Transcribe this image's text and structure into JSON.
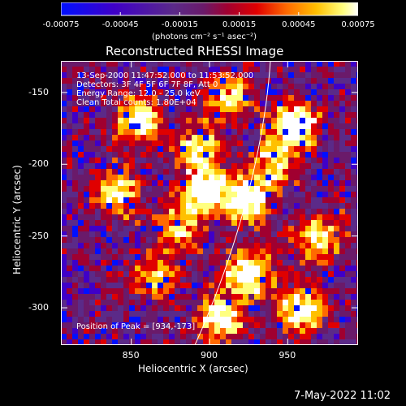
{
  "colorbar": {
    "ticks": [
      "-0.00075",
      "-0.00045",
      "-0.00015",
      "0.00015",
      "0.00045",
      "0.00075"
    ],
    "min": -0.00075,
    "max": 0.00075,
    "units": "(photons cm⁻² s⁻¹ asec⁻²)"
  },
  "image": {
    "title": "Reconstructed RHESSI Image",
    "time_range": "13-Sep-2000 11:47:52.000 to 11:53:52.000",
    "detectors": "Detectors: 3F 4F 5F 6F 7F 8F, Att 0",
    "energy_range": "Energy Range: 12.0 - 25.0 keV",
    "clean_counts": "Clean     Total counts: 1.80E+04",
    "peak_position": "Position of Peak = [934,-173]",
    "x_label": "Heliocentric X (arcsec)",
    "y_label": "Heliocentric Y (arcsec)",
    "x_ticks": [
      "850",
      "900",
      "950"
    ],
    "y_ticks": [
      "-150",
      "-200",
      "-250",
      "-300"
    ],
    "x_range": [
      805,
      995
    ],
    "y_range": [
      -326,
      -128
    ]
  },
  "footer": {
    "timestamp": "7-May-2022 11:02"
  },
  "colors": {
    "background": "#000000",
    "colorbar_scale": [
      "#0010ff",
      "#3f00c8",
      "#5b2a88",
      "#6a1a6a",
      "#a00030",
      "#e00000",
      "#ff6a00",
      "#ffc000",
      "#ffff80",
      "#ffffff"
    ]
  }
}
